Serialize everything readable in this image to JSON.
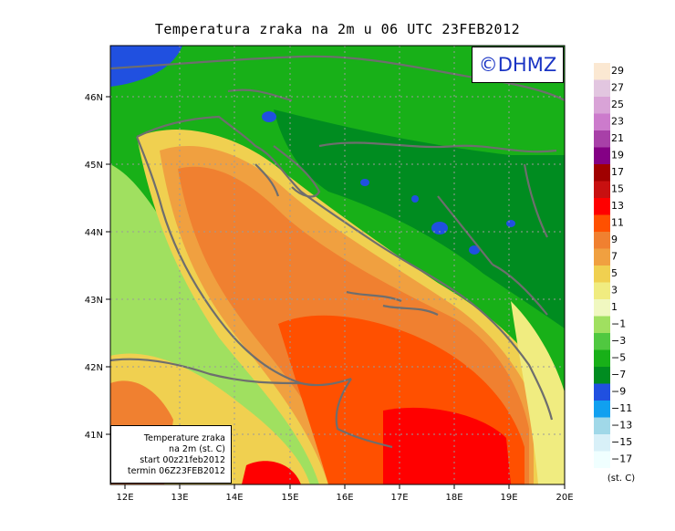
{
  "title": "Temperatura zraka na 2m u 06 UTC 23FEB2012",
  "logo_text": "©DHMZ",
  "info": {
    "line1": "Temperature zraka",
    "line2": "na 2m (st. C)",
    "line3": "start 00z21feb2012",
    "line4": "termin 06Z23FEB2012"
  },
  "axes": {
    "lon_ticks": [
      "12E",
      "13E",
      "14E",
      "15E",
      "16E",
      "17E",
      "18E",
      "19E",
      "20E"
    ],
    "lat_ticks": [
      "46N",
      "45N",
      "44N",
      "43N",
      "42N",
      "41N"
    ]
  },
  "legend": {
    "unit": "(st. C)",
    "labels": [
      "29",
      "27",
      "25",
      "23",
      "21",
      "19",
      "17",
      "15",
      "13",
      "11",
      "9",
      "7",
      "5",
      "3",
      "1",
      "−1",
      "−3",
      "−5",
      "−7",
      "−9",
      "−11",
      "−13",
      "−15",
      "−17"
    ],
    "colors": [
      "#fbe8d2",
      "#e2c6e0",
      "#d9a3d7",
      "#cc7bcc",
      "#a840a8",
      "#840085",
      "#a00000",
      "#c81010",
      "#ff0000",
      "#ff5000",
      "#f08030",
      "#f0a040",
      "#f0d050",
      "#f0ec80",
      "#f0f8c0",
      "#a0e060",
      "#50c840",
      "#18b018",
      "#008c20",
      "#2050e0",
      "#10a0f0",
      "#a0d8e8",
      "#d8f0f8",
      "#f0ffff"
    ]
  },
  "colors": {
    "land_green": "#1ea31e",
    "sea_orange": "#f08030",
    "coast": "#6e6e6e"
  }
}
